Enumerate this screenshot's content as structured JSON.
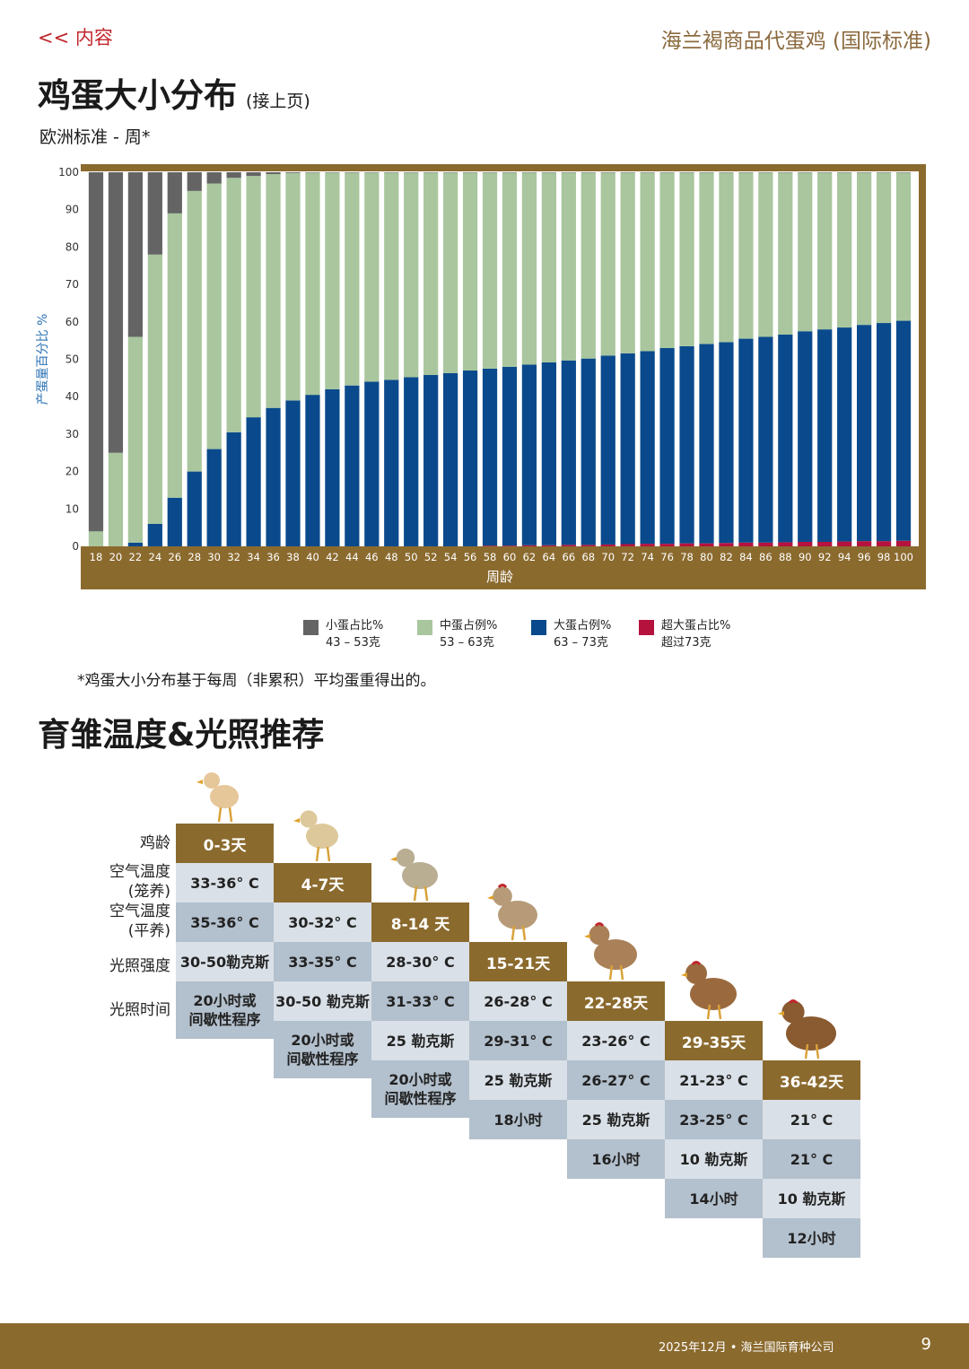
{
  "header": {
    "back_link": "<< 内容",
    "brand": "海兰褐商品代蛋鸡 (国际标准)"
  },
  "page_title": "鸡蛋大小分布",
  "page_title_sub": "(接上页)",
  "chart_subtitle": "欧洲标准 - 周*",
  "chart_data": {
    "type": "bar",
    "stacked": true,
    "xlabel": "周龄",
    "ylabel": "产蛋量百分比 %",
    "ylim": [
      0,
      100
    ],
    "yticks": [
      0,
      10,
      20,
      30,
      40,
      50,
      60,
      70,
      80,
      90,
      100
    ],
    "categories": [
      "18",
      "20",
      "22",
      "24",
      "26",
      "28",
      "30",
      "32",
      "34",
      "36",
      "38",
      "40",
      "42",
      "44",
      "46",
      "48",
      "50",
      "52",
      "54",
      "56",
      "58",
      "60",
      "62",
      "64",
      "66",
      "68",
      "70",
      "72",
      "74",
      "76",
      "78",
      "80",
      "82",
      "84",
      "86",
      "88",
      "90",
      "92",
      "94",
      "96",
      "98",
      "100"
    ],
    "series": [
      {
        "name": "超大蛋占比%",
        "color": "#b5123e",
        "values": [
          0,
          0,
          0,
          0,
          0,
          0,
          0,
          0,
          0,
          0,
          0,
          0,
          0,
          0,
          0,
          0,
          0,
          0,
          0,
          0,
          0.2,
          0.2,
          0.3,
          0.3,
          0.4,
          0.4,
          0.5,
          0.6,
          0.7,
          0.7,
          0.8,
          0.8,
          0.9,
          1.0,
          1.0,
          1.1,
          1.2,
          1.2,
          1.3,
          1.4,
          1.4,
          1.5
        ]
      },
      {
        "name": "大蛋占比%",
        "color": "#0a4a8c",
        "values": [
          0,
          0,
          1,
          6,
          13,
          20,
          26,
          30.5,
          34.5,
          37,
          39,
          40.5,
          42,
          43,
          44,
          44.5,
          45.2,
          45.8,
          46.3,
          47,
          47.3,
          47.8,
          48.3,
          48.9,
          49.3,
          49.8,
          50.5,
          51,
          51.5,
          52.3,
          52.7,
          53.3,
          53.7,
          54.5,
          55,
          55.5,
          56.3,
          56.8,
          57.2,
          57.8,
          58.3,
          58.8
        ]
      },
      {
        "name": "中蛋占比%",
        "color": "#a9c69e",
        "values": [
          4,
          25,
          55,
          72,
          76,
          75,
          71,
          68,
          64.5,
          62.5,
          60.8,
          59.4,
          57.9,
          56.9,
          55.9,
          55.4,
          54.7,
          54.1,
          53.6,
          52.9,
          52.4,
          51.9,
          51.3,
          50.7,
          50.2,
          49.7,
          48.9,
          48.3,
          47.7,
          46.9,
          46.4,
          45.8,
          45.3,
          44.4,
          43.9,
          43.3,
          42.4,
          41.9,
          41.4,
          40.7,
          40.2,
          39.6
        ]
      },
      {
        "name": "小蛋占比%",
        "color": "#646464",
        "values": [
          96,
          75,
          44,
          22,
          11,
          5,
          3,
          1.5,
          1,
          0.5,
          0.2,
          0.1,
          0.1,
          0.1,
          0.1,
          0.1,
          0.1,
          0.1,
          0.1,
          0.1,
          0.1,
          0.1,
          0.1,
          0.1,
          0.1,
          0.1,
          0.1,
          0.1,
          0.1,
          0.1,
          0.1,
          0.1,
          0.1,
          0.1,
          0.1,
          0.1,
          0.1,
          0.1,
          0.1,
          0.1,
          0.1,
          0.1
        ]
      }
    ]
  },
  "legend": [
    {
      "label": "小蛋占比%",
      "range": "43 – 53克",
      "color": "#646464"
    },
    {
      "label": "中蛋占例%",
      "range": "53 – 63克",
      "color": "#a9c69e"
    },
    {
      "label": "大蛋占例%",
      "range": "63 – 73克",
      "color": "#0a4a8c"
    },
    {
      "label": "超大蛋占比%",
      "range": "超过73克",
      "color": "#b5123e"
    }
  ],
  "note": "*鸡蛋大小分布基于每周（非累积）平均蛋重得出的。",
  "section2_title": "育雏温度&光照推荐",
  "row_labels": {
    "age": "鸡龄",
    "air_temp_cage_1": "空气温度",
    "air_temp_cage_2": "(笼养)",
    "air_temp_floor_1": "空气温度",
    "air_temp_floor_2": "(平养)",
    "light_intensity": "光照强度",
    "light_hours": "光照时间"
  },
  "stages": [
    {
      "age": "0-3天",
      "temp_cage": "33-36° C",
      "temp_floor": "35-36° C",
      "intensity": "30-50勒克斯",
      "hours_1": "20小时或",
      "hours_2": "间歇性程序"
    },
    {
      "age": "4-7天",
      "temp_cage": "30-32° C",
      "temp_floor": "33-35° C",
      "intensity": "30-50 勒克斯",
      "hours_1": "20小时或",
      "hours_2": "间歇性程序"
    },
    {
      "age": "8-14 天",
      "temp_cage": "28-30° C",
      "temp_floor": "31-33° C",
      "intensity": "25 勒克斯",
      "hours_1": "20小时或",
      "hours_2": "间歇性程序"
    },
    {
      "age": "15-21天",
      "temp_cage": "26-28° C",
      "temp_floor": "29-31° C",
      "intensity": "25 勒克斯",
      "hours_1": "18小时",
      "hours_2": ""
    },
    {
      "age": "22-28天",
      "temp_cage": "23-26° C",
      "temp_floor": "26-27° C",
      "intensity": "25 勒克斯",
      "hours_1": "16小时",
      "hours_2": ""
    },
    {
      "age": "29-35天",
      "temp_cage": "21-23° C",
      "temp_floor": "23-25° C",
      "intensity": "10 勒克斯",
      "hours_1": "14小时",
      "hours_2": ""
    },
    {
      "age": "36-42天",
      "temp_cage": "21° C",
      "temp_floor": "21° C",
      "intensity": "10 勒克斯",
      "hours_1": "12小时",
      "hours_2": ""
    }
  ],
  "footer": {
    "text": "2025年12月 • 海兰国际育种公司",
    "page_number": "9"
  }
}
